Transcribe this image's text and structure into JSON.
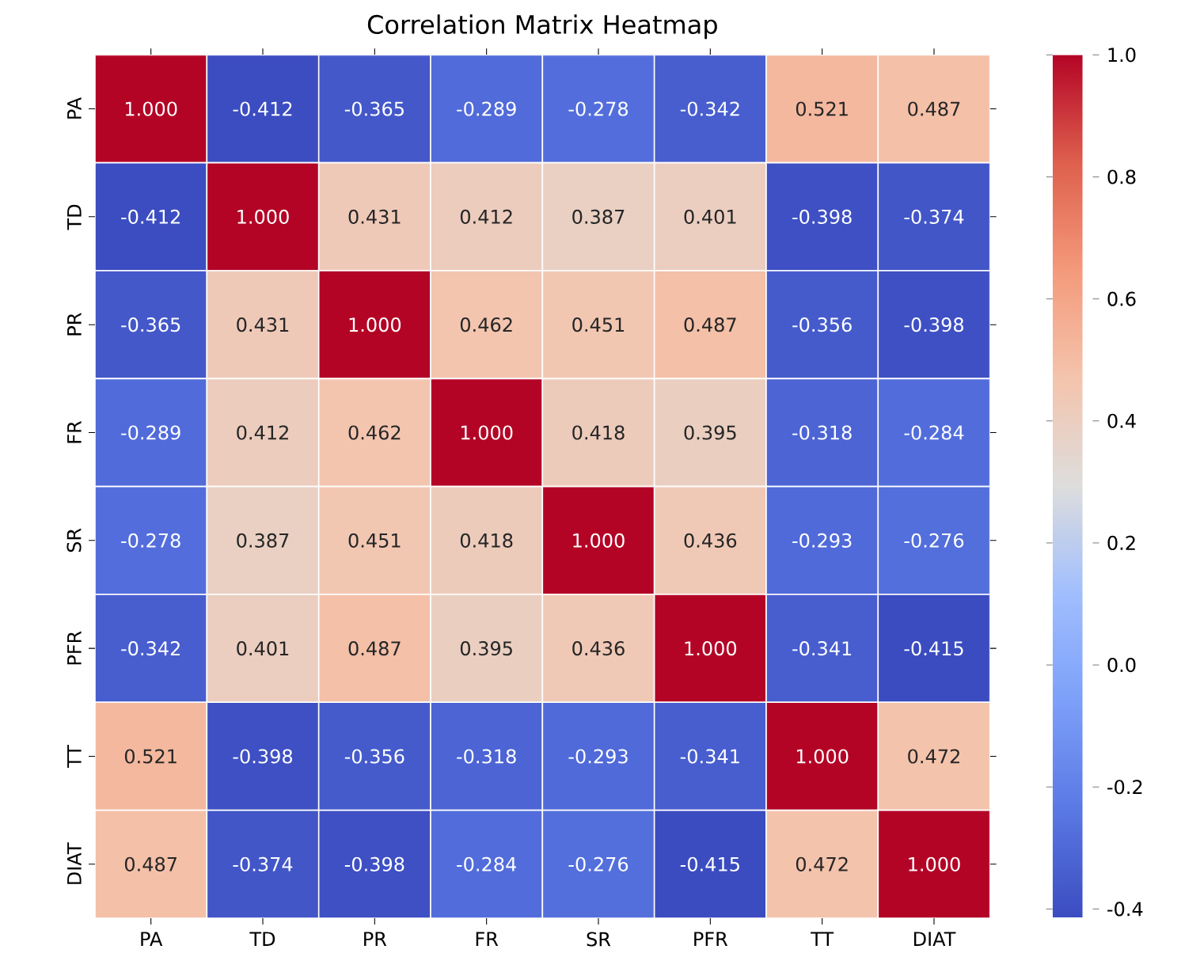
{
  "chart_data": {
    "type": "heatmap",
    "title": "Correlation Matrix Heatmap",
    "categories": [
      "PA",
      "TD",
      "PR",
      "FR",
      "SR",
      "PFR",
      "TT",
      "DIAT"
    ],
    "y_categories": [
      "PA",
      "TD",
      "PR",
      "FR",
      "SR",
      "PFR",
      "TT",
      "DIAT"
    ],
    "cells": [
      [
        1.0,
        -0.412,
        -0.365,
        -0.289,
        -0.278,
        -0.342,
        0.521,
        0.487
      ],
      [
        -0.412,
        1.0,
        0.431,
        0.412,
        0.387,
        0.401,
        -0.398,
        -0.374
      ],
      [
        -0.365,
        0.431,
        1.0,
        0.462,
        0.451,
        0.487,
        -0.356,
        -0.398
      ],
      [
        -0.289,
        0.412,
        0.462,
        1.0,
        0.418,
        0.395,
        -0.318,
        -0.284
      ],
      [
        -0.278,
        0.387,
        0.451,
        0.418,
        1.0,
        0.436,
        -0.293,
        -0.276
      ],
      [
        -0.342,
        0.401,
        0.487,
        0.395,
        0.436,
        1.0,
        -0.341,
        -0.415
      ],
      [
        0.521,
        -0.398,
        -0.356,
        -0.318,
        -0.293,
        -0.341,
        1.0,
        0.472
      ],
      [
        0.487,
        -0.374,
        -0.398,
        -0.284,
        -0.276,
        -0.415,
        0.472,
        1.0
      ]
    ],
    "cell_labels": [
      [
        "1.000",
        "-0.412",
        "-0.365",
        "-0.289",
        "-0.278",
        "-0.342",
        "0.521",
        "0.487"
      ],
      [
        "-0.412",
        "1.000",
        "0.431",
        "0.412",
        "0.387",
        "0.401",
        "-0.398",
        "-0.374"
      ],
      [
        "-0.365",
        "0.431",
        "1.000",
        "0.462",
        "0.451",
        "0.487",
        "-0.356",
        "-0.398"
      ],
      [
        "-0.289",
        "0.412",
        "0.462",
        "1.000",
        "0.418",
        "0.395",
        "-0.318",
        "-0.284"
      ],
      [
        "-0.278",
        "0.387",
        "0.451",
        "0.418",
        "1.000",
        "0.436",
        "-0.293",
        "-0.276"
      ],
      [
        "-0.342",
        "0.401",
        "0.487",
        "0.395",
        "0.436",
        "1.000",
        "-0.341",
        "-0.415"
      ],
      [
        "0.521",
        "-0.398",
        "-0.356",
        "-0.318",
        "-0.293",
        "-0.341",
        "1.000",
        "0.472"
      ],
      [
        "0.487",
        "-0.374",
        "-0.398",
        "-0.284",
        "-0.276",
        "-0.415",
        "0.472",
        "1.000"
      ]
    ],
    "clim": [
      -0.415,
      1.0
    ],
    "cticks": [
      -0.4,
      -0.2,
      {
        "value": 0,
        "label": "0.0"
      },
      0.2,
      0.4,
      0.6,
      0.8,
      {
        "value": 1,
        "label": "1.0"
      }
    ]
  }
}
